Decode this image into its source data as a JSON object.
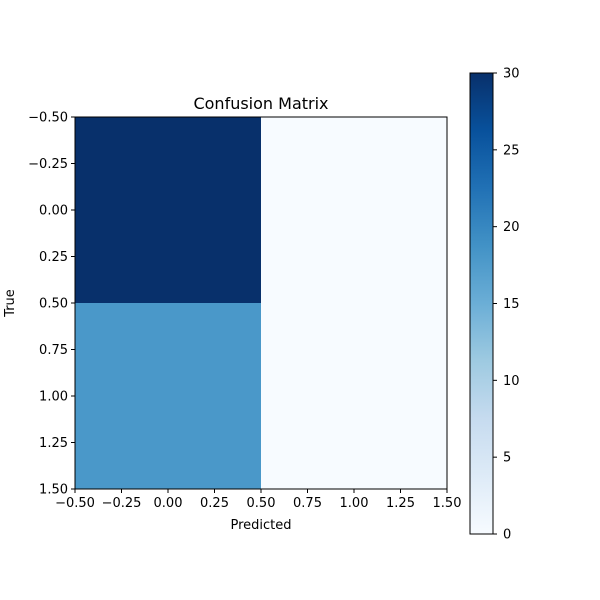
{
  "chart_data": {
    "type": "heatmap",
    "title": "Confusion Matrix",
    "xlabel": "Predicted",
    "ylabel": "True",
    "matrix": [
      [
        30,
        0
      ],
      [
        18,
        0
      ]
    ],
    "xlim": [
      -0.5,
      1.5
    ],
    "ylim": [
      1.5,
      -0.5
    ],
    "x_ticks": [
      "−0.50",
      "−0.25",
      "0.00",
      "0.25",
      "0.50",
      "0.75",
      "1.00",
      "1.25",
      "1.50"
    ],
    "y_ticks": [
      "−0.50",
      "−0.25",
      "0.00",
      "0.25",
      "0.50",
      "0.75",
      "1.00",
      "1.25",
      "1.50"
    ],
    "x_tick_values": [
      -0.5,
      -0.25,
      0,
      0.25,
      0.5,
      0.75,
      1.0,
      1.25,
      1.5
    ],
    "y_tick_values": [
      -0.5,
      -0.25,
      0,
      0.25,
      0.5,
      0.75,
      1.0,
      1.25,
      1.5
    ],
    "colorbar": {
      "min": 0,
      "max": 30,
      "ticks": [
        0,
        5,
        10,
        15,
        20,
        25,
        30
      ],
      "colormap": "Blues"
    },
    "grid": false,
    "legend": "none"
  }
}
